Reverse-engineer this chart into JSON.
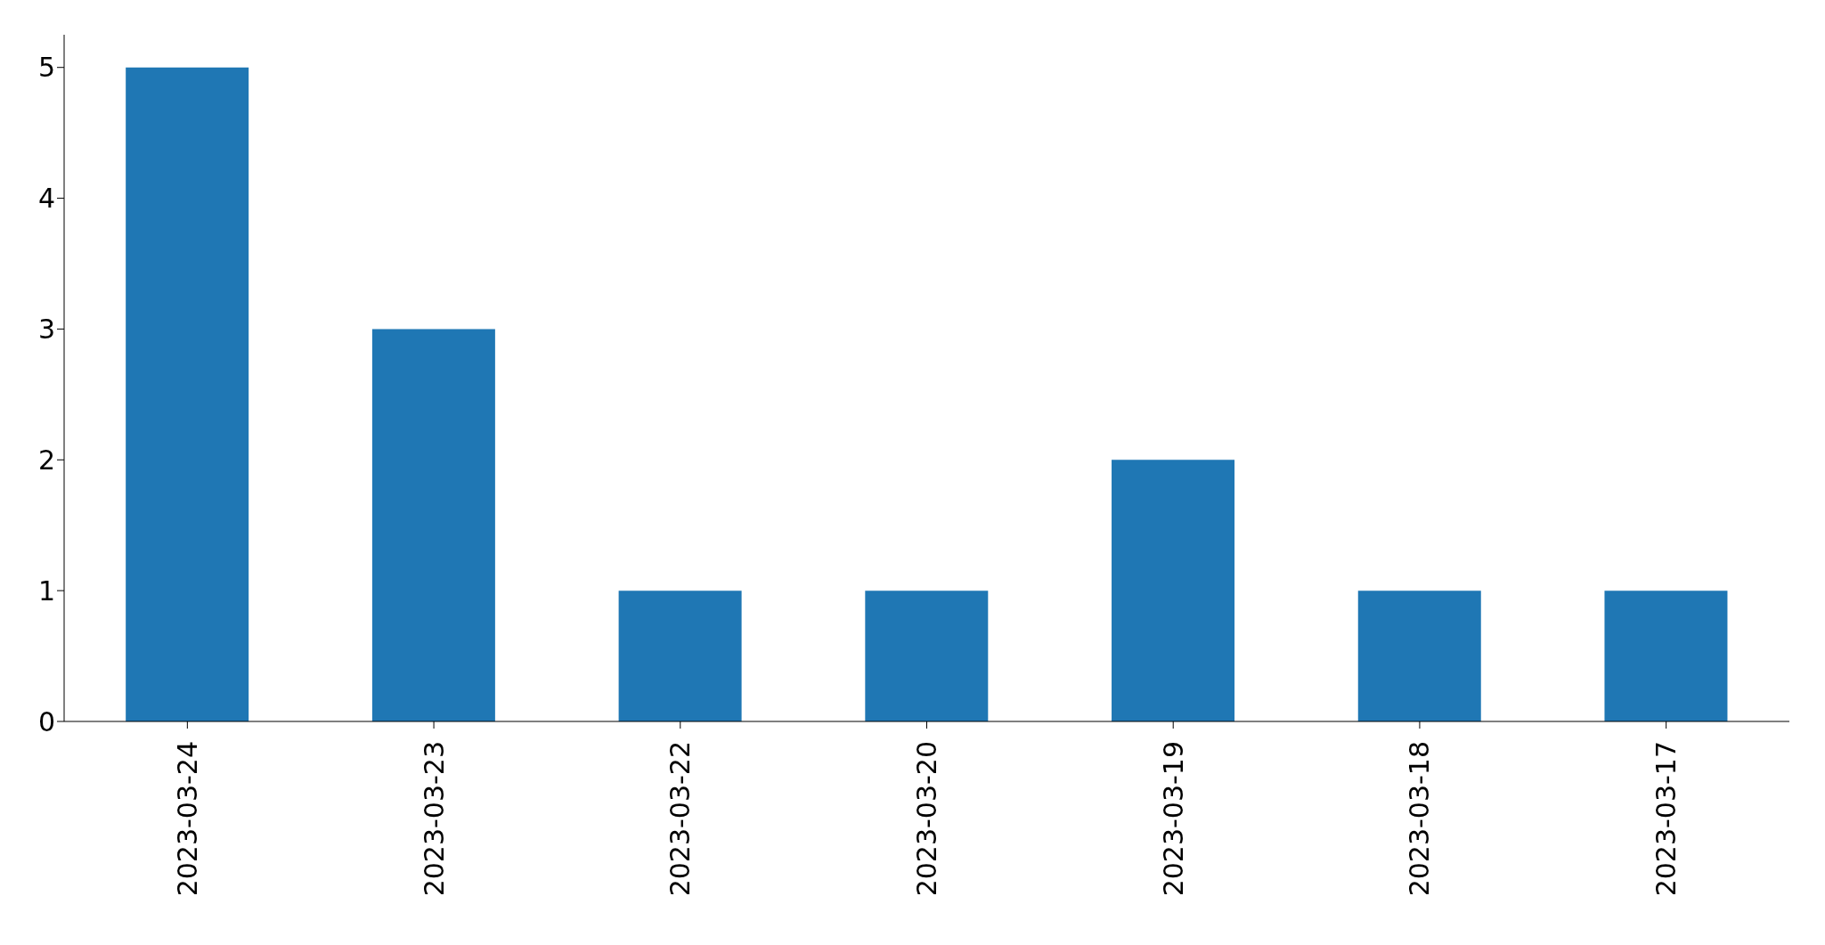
{
  "chart_data": {
    "type": "bar",
    "categories": [
      "2023-03-24",
      "2023-03-23",
      "2023-03-22",
      "2023-03-20",
      "2023-03-19",
      "2023-03-18",
      "2023-03-17"
    ],
    "values": [
      5,
      3,
      1,
      1,
      2,
      1,
      1
    ],
    "color": "#1f77b4",
    "ylim": [
      0,
      5.25
    ],
    "yticks": [
      0,
      1,
      2,
      3,
      4,
      5
    ],
    "grid": false,
    "legend": false
  }
}
